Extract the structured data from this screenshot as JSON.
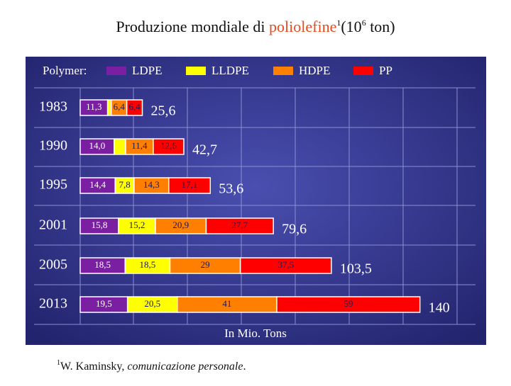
{
  "slide": {
    "title_start": "Produzione mondiale di ",
    "title_highlight": "poliolefine",
    "title_ref": "1",
    "title_mid": "(10",
    "title_exp": "6",
    "title_end": " ton)",
    "footnote_ref": "1",
    "footnote_author": "W. Kaminsky, ",
    "footnote_source": "comunicazione personale",
    "footnote_end": "."
  },
  "chart_data": {
    "type": "stacked-bar-horizontal",
    "legend_title": "Polymer:",
    "x_axis_label": "In Mio. Tons",
    "categories": [
      "1983",
      "1990",
      "1995",
      "2001",
      "2005",
      "2013"
    ],
    "xlim": [
      0,
      167
    ],
    "series": [
      {
        "name": "LDPE",
        "color": "#7b1fa2",
        "values": [
          11.3,
          14.0,
          14.4,
          15.8,
          18.5,
          19.5
        ],
        "value_labels": [
          "11,3",
          "14,0",
          "14,4",
          "15,8",
          "18,5",
          "19,5"
        ]
      },
      {
        "name": "LLDPE",
        "color": "#ffff00",
        "values": [
          1.5,
          4.7,
          7.8,
          15.2,
          18.5,
          20.5
        ],
        "value_labels": [
          null,
          null,
          "7,8",
          "15,2",
          "18,5",
          "20,5"
        ]
      },
      {
        "name": "HDPE",
        "color": "#ff7f00",
        "values": [
          6.4,
          11.4,
          14.3,
          20.9,
          29,
          41
        ],
        "value_labels": [
          "6,4",
          "11,4",
          "14,3",
          "20,9",
          "29",
          "41"
        ]
      },
      {
        "name": "PP",
        "color": "#ff0000",
        "values": [
          6.4,
          12.6,
          17.1,
          27.7,
          37.5,
          59
        ],
        "value_labels": [
          "6,4",
          "12,6",
          "17,1",
          "27,7",
          "37,5",
          "59"
        ]
      }
    ],
    "total_labels": [
      "25,6",
      "42,7",
      "53,6",
      "79,6",
      "103,5",
      "140"
    ]
  }
}
